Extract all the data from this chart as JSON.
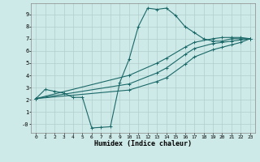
{
  "xlabel": "Humidex (Indice chaleur)",
  "bg_color": "#ceeae8",
  "grid_color": "#b0cece",
  "line_color": "#1a6868",
  "xlim": [
    -0.5,
    23.5
  ],
  "ylim": [
    -0.7,
    9.9
  ],
  "xticks": [
    0,
    1,
    2,
    3,
    4,
    5,
    6,
    7,
    8,
    9,
    10,
    11,
    12,
    13,
    14,
    15,
    16,
    17,
    18,
    19,
    20,
    21,
    22,
    23
  ],
  "yticks": [
    0,
    1,
    2,
    3,
    4,
    5,
    6,
    7,
    8,
    9
  ],
  "ytick_labels": [
    "-0",
    "1",
    "2",
    "3",
    "4",
    "5",
    "6",
    "7",
    "8",
    "9"
  ],
  "line1_x": [
    0,
    1,
    2,
    3,
    4,
    5,
    6,
    7,
    8,
    9,
    10,
    11,
    12,
    13,
    14,
    15,
    16,
    17,
    18,
    19,
    20,
    21,
    22,
    23
  ],
  "line1_y": [
    2.1,
    2.85,
    2.7,
    2.55,
    2.2,
    2.2,
    -0.3,
    -0.25,
    -0.2,
    3.4,
    5.3,
    8.0,
    9.5,
    9.4,
    9.5,
    8.9,
    8.0,
    7.5,
    7.0,
    6.8,
    6.8,
    7.0,
    7.0,
    7.0
  ],
  "line2_x": [
    0,
    10,
    13,
    14,
    16,
    17,
    19,
    20,
    21,
    22,
    23
  ],
  "line2_y": [
    2.1,
    4.0,
    5.0,
    5.4,
    6.3,
    6.7,
    7.0,
    7.1,
    7.1,
    7.1,
    7.0
  ],
  "line3_x": [
    0,
    10,
    13,
    14,
    16,
    17,
    19,
    20,
    21,
    22,
    23
  ],
  "line3_y": [
    2.1,
    3.3,
    4.2,
    4.6,
    5.7,
    6.2,
    6.6,
    6.7,
    6.8,
    6.9,
    7.0
  ],
  "line4_x": [
    0,
    10,
    13,
    14,
    16,
    17,
    19,
    20,
    21,
    22,
    23
  ],
  "line4_y": [
    2.1,
    2.8,
    3.5,
    3.8,
    4.9,
    5.5,
    6.1,
    6.3,
    6.5,
    6.7,
    7.0
  ]
}
